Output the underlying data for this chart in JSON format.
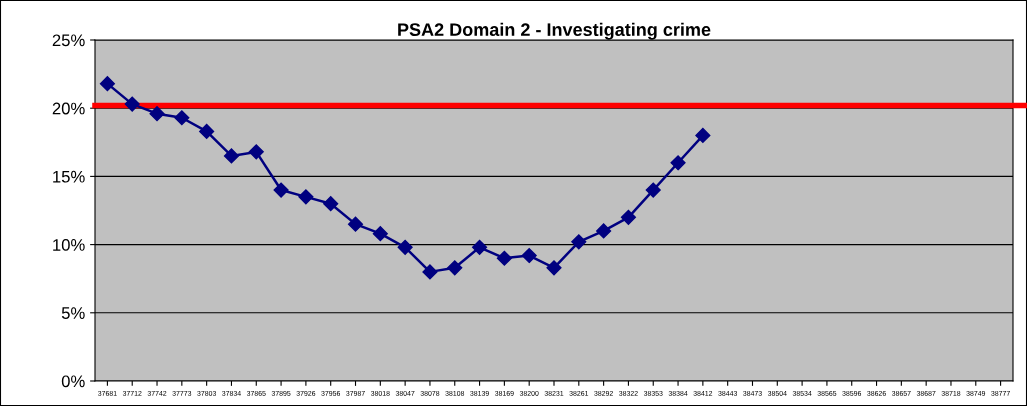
{
  "chart_data": {
    "type": "line",
    "title": "PSA2 Domain 2 - Investigating crime",
    "categories": [
      "37681",
      "37712",
      "37742",
      "37773",
      "37803",
      "37834",
      "37865",
      "37895",
      "37926",
      "37956",
      "37987",
      "38018",
      "38047",
      "38078",
      "38108",
      "38139",
      "38169",
      "38200",
      "38231",
      "38261",
      "38292",
      "38322",
      "38353",
      "38384",
      "38412",
      "38443",
      "38473",
      "38504",
      "38534",
      "38565",
      "38596",
      "38626",
      "38657",
      "38687",
      "38718",
      "38749",
      "38777"
    ],
    "series": [
      {
        "color": "#000080",
        "values": [
          21.8,
          20.3,
          19.6,
          19.3,
          18.3,
          16.5,
          16.8,
          14.0,
          13.5,
          13.0,
          11.5,
          10.8,
          9.8,
          8.0,
          8.3,
          9.8,
          9.0,
          9.2,
          8.3,
          10.2,
          11.0,
          12.0,
          14.0,
          16.0,
          18.0,
          null,
          null,
          null,
          null,
          null,
          null,
          null,
          null,
          null,
          null,
          null,
          null
        ]
      }
    ],
    "ylim": [
      0,
      25
    ],
    "yticks": [
      {
        "value": 0,
        "label": "0%"
      },
      {
        "value": 5,
        "label": "5%"
      },
      {
        "value": 10,
        "label": "10%"
      },
      {
        "value": 15,
        "label": "15%"
      },
      {
        "value": 20,
        "label": "20%"
      },
      {
        "value": 25,
        "label": "25%"
      }
    ],
    "grid": "y",
    "marker": "diamond",
    "line_style": "solid",
    "ref_lines": [
      {
        "axis": "y",
        "value": 20.2,
        "color": "#ff0000",
        "line_style": "solid"
      }
    ]
  }
}
